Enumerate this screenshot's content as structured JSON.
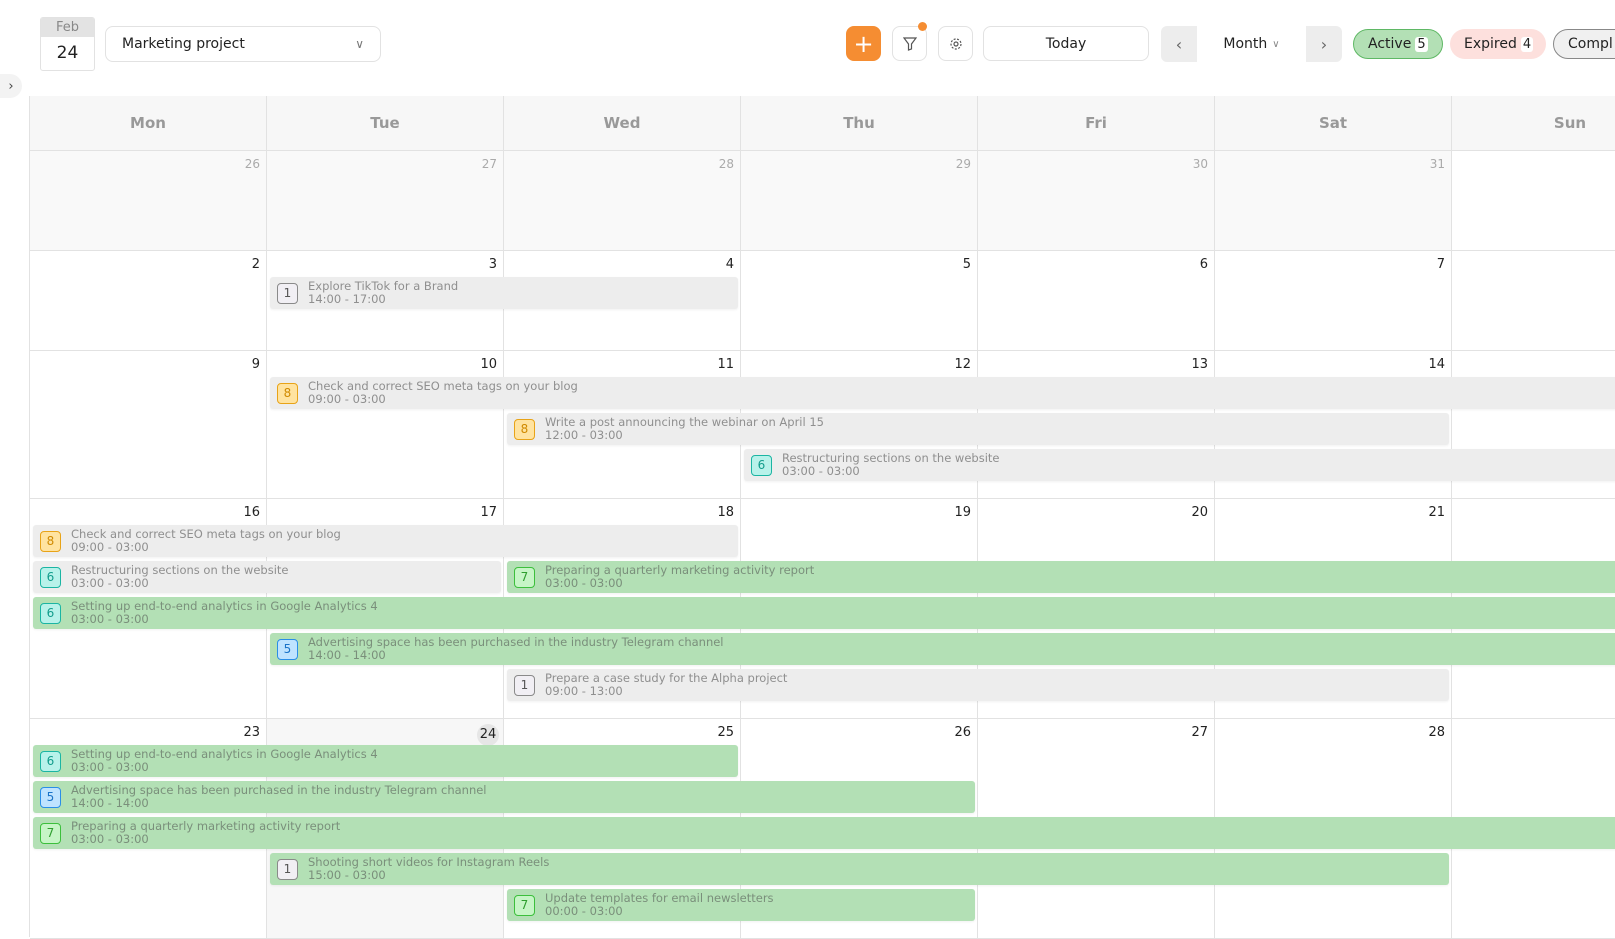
{
  "header": {
    "date_month": "Feb",
    "date_day": "24",
    "project": "Marketing project",
    "today_label": "Today",
    "view_label": "Month",
    "filters": [
      {
        "label": "Active",
        "count": "5"
      },
      {
        "label": "Expired",
        "count": "4"
      },
      {
        "label": "Compl",
        "count": ""
      }
    ]
  },
  "colors": {
    "accent": "#f58d32",
    "event_grey": "#ededed",
    "event_green": "#b3e0b5",
    "badges": {
      "1": [
        "#f1eff4",
        "#8a8a8a",
        "#555"
      ],
      "5": [
        "#bfe3ff",
        "#2a8ee8",
        "#1a73c8"
      ],
      "6": [
        "#b8f2ea",
        "#1bb5a3",
        "#119c8c"
      ],
      "7": [
        "#c6f5c6",
        "#3cbf3c",
        "#2e9e2e"
      ],
      "8": [
        "#ffe3a0",
        "#e8a317",
        "#d08a00"
      ]
    }
  },
  "weekdays": [
    "Mon",
    "Tue",
    "Wed",
    "Thu",
    "Fri",
    "Sat",
    "Sun"
  ],
  "weeks": [
    {
      "days": [
        "26",
        "27",
        "28",
        "29",
        "30",
        "31",
        ""
      ],
      "other": [
        0,
        1,
        2,
        3,
        4,
        5
      ],
      "events": []
    },
    {
      "days": [
        "2",
        "3",
        "4",
        "5",
        "6",
        "7",
        ""
      ],
      "events": [
        {
          "title": "Explore TikTok for a Brand",
          "time": "14:00 - 17:00",
          "badge": "1",
          "status": "grey",
          "from": 1,
          "to": 2,
          "lane": 0
        }
      ]
    },
    {
      "days": [
        "9",
        "10",
        "11",
        "12",
        "13",
        "14",
        ""
      ],
      "events": [
        {
          "title": "Check and correct SEO meta tags on your blog",
          "time": "09:00 - 03:00",
          "badge": "8",
          "status": "grey",
          "from": 1,
          "to": 7,
          "lane": 0
        },
        {
          "title": "Write a post announcing the webinar on April 15",
          "time": "12:00 - 03:00",
          "badge": "8",
          "status": "grey",
          "from": 2,
          "to": 5,
          "lane": 1
        },
        {
          "title": "Restructuring sections on the website",
          "time": "03:00 - 03:00",
          "badge": "6",
          "status": "grey",
          "from": 3,
          "to": 7,
          "lane": 2
        }
      ]
    },
    {
      "days": [
        "16",
        "17",
        "18",
        "19",
        "20",
        "21",
        ""
      ],
      "events": [
        {
          "title": "Check and correct SEO meta tags on your blog",
          "time": "09:00 - 03:00",
          "badge": "8",
          "status": "grey",
          "from": 0,
          "to": 2,
          "lane": 0
        },
        {
          "title": "Restructuring sections on the website",
          "time": "03:00 - 03:00",
          "badge": "6",
          "status": "grey",
          "from": 0,
          "to": 1,
          "lane": 1
        },
        {
          "title": "Preparing a quarterly marketing activity report",
          "time": "03:00 - 03:00",
          "badge": "7",
          "status": "green",
          "from": 2,
          "to": 7,
          "lane": 1
        },
        {
          "title": "Setting up end-to-end analytics in Google Analytics 4",
          "time": "03:00 - 03:00",
          "badge": "6",
          "status": "green",
          "from": 0,
          "to": 7,
          "lane": 2
        },
        {
          "title": "Advertising space has been purchased in the industry Telegram channel",
          "time": "14:00 - 14:00",
          "badge": "5",
          "status": "green",
          "from": 1,
          "to": 7,
          "lane": 3
        },
        {
          "title": "Prepare a case study for the Alpha project",
          "time": "09:00 - 13:00",
          "badge": "1",
          "status": "grey",
          "from": 2,
          "to": 5,
          "lane": 4
        }
      ]
    },
    {
      "days": [
        "23",
        "24",
        "25",
        "26",
        "27",
        "28",
        ""
      ],
      "today": 1,
      "events": [
        {
          "title": "Setting up end-to-end analytics in Google Analytics 4",
          "time": "03:00 - 03:00",
          "badge": "6",
          "status": "green",
          "from": 0,
          "to": 2,
          "lane": 0
        },
        {
          "title": "Advertising space has been purchased in the industry Telegram channel",
          "time": "14:00 - 14:00",
          "badge": "5",
          "status": "green",
          "from": 0,
          "to": 3,
          "lane": 1
        },
        {
          "title": "Preparing a quarterly marketing activity report",
          "time": "03:00 - 03:00",
          "badge": "7",
          "status": "green",
          "from": 0,
          "to": 7,
          "lane": 2
        },
        {
          "title": "Shooting short videos for Instagram Reels",
          "time": "15:00 - 03:00",
          "badge": "1",
          "status": "green",
          "from": 1,
          "to": 5,
          "lane": 3
        },
        {
          "title": "Update templates for email newsletters",
          "time": "00:00 - 03:00",
          "badge": "7",
          "status": "green",
          "from": 2,
          "to": 3,
          "lane": 4
        }
      ]
    }
  ]
}
